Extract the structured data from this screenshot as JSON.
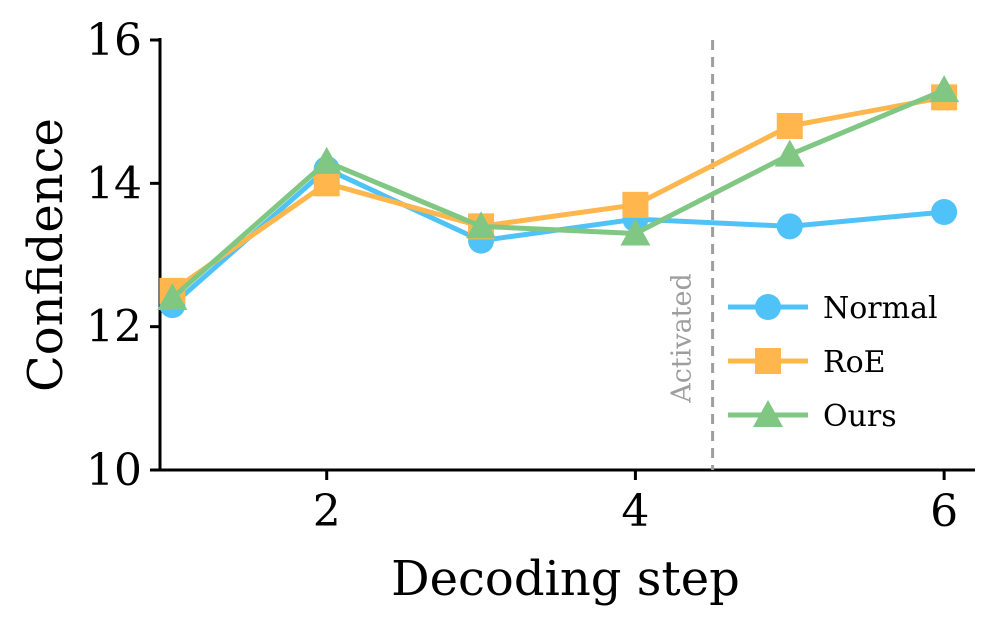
{
  "chart_data": {
    "type": "line",
    "title": "",
    "xlabel": "Decoding step",
    "ylabel": "Confidence",
    "x": [
      1,
      2,
      3,
      4,
      5,
      6
    ],
    "xlim": [
      0.92,
      6.2
    ],
    "ylim": [
      10,
      16
    ],
    "xticks": [
      2,
      4,
      6
    ],
    "yticks": [
      10,
      12,
      14,
      16
    ],
    "grid": false,
    "legend_position": "lower-right",
    "series": [
      {
        "name": "Normal",
        "marker": "circle",
        "color": "#4FC3F7",
        "values": [
          12.3,
          14.2,
          13.2,
          13.5,
          13.4,
          13.6
        ]
      },
      {
        "name": "RoE",
        "marker": "square",
        "color": "#FFB74D",
        "values": [
          12.5,
          14.0,
          13.4,
          13.7,
          14.8,
          15.2
        ]
      },
      {
        "name": "Ours",
        "marker": "triangle",
        "color": "#81C784",
        "values": [
          12.4,
          14.3,
          13.4,
          13.3,
          14.4,
          15.3
        ]
      }
    ],
    "annotations": [
      {
        "type": "vline",
        "x": 4.5,
        "label": "Activated",
        "color": "#9e9e9e",
        "style": "dashed"
      }
    ]
  }
}
